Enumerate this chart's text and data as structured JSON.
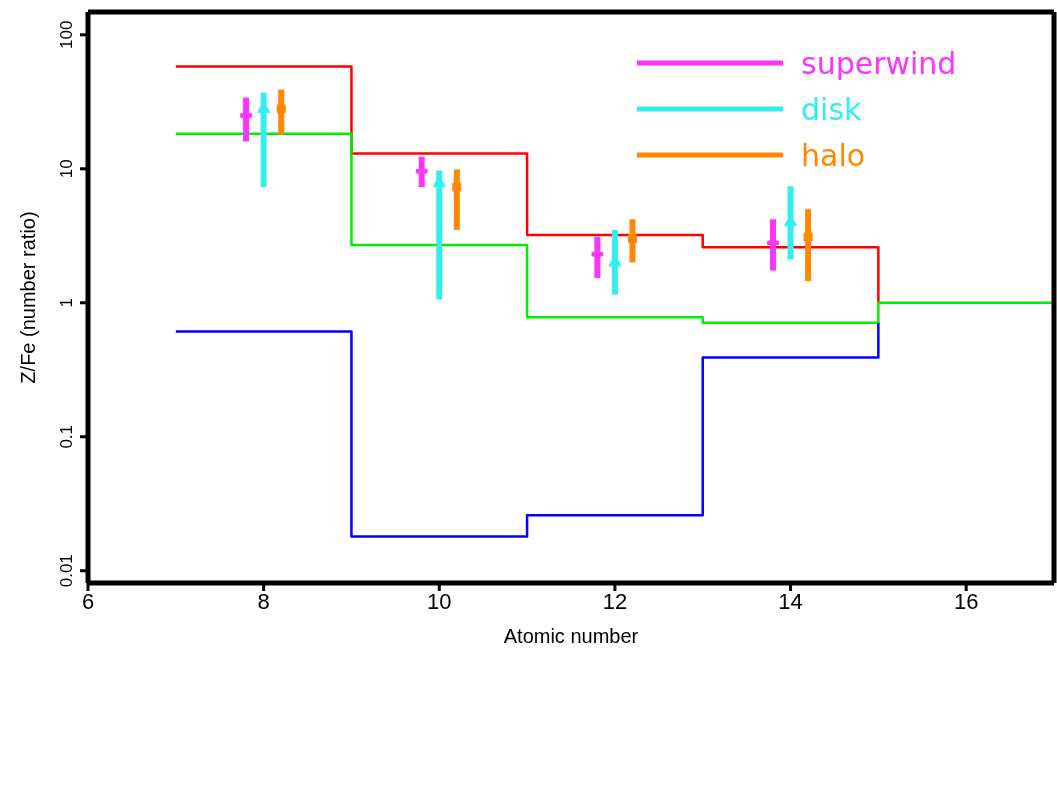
{
  "chart_data": {
    "type": "step",
    "xlabel": "Atomic number",
    "ylabel": "Z/Fe (number ratio)",
    "log": "y",
    "xlim": [
      6,
      17
    ],
    "xticks": [
      6,
      8,
      10,
      12,
      14,
      16
    ],
    "ylim": [
      0.0081,
      148
    ],
    "yticks": [
      0.01,
      0.1,
      1,
      10,
      100
    ],
    "grid": false,
    "legend": "top right",
    "series": [
      {
        "color": "#ff0000",
        "x": [
          7,
          9,
          11,
          13,
          15
        ],
        "values": [
          58,
          13,
          3.2,
          2.6,
          1
        ]
      },
      {
        "color": "#00ee00",
        "x": [
          7,
          9,
          11,
          13,
          15,
          17
        ],
        "values": [
          18.3,
          2.7,
          0.78,
          0.71,
          1,
          1
        ]
      },
      {
        "color": "#0000ff",
        "x": [
          7,
          9,
          11,
          13,
          15
        ],
        "values": [
          0.61,
          0.018,
          0.026,
          0.39,
          0.71
        ]
      },
      {
        "type": "scatter",
        "name": "superwind",
        "color": "#ff33ff",
        "marker": "cross",
        "x": [
          7.8,
          9.8,
          11.8,
          13.8
        ],
        "values": [
          25,
          9.6,
          2.3,
          2.8
        ],
        "errors": [
          [
            16,
            34
          ],
          [
            7.3,
            12.3
          ],
          [
            1.53,
            3.1
          ],
          [
            1.74,
            4.2
          ]
        ]
      },
      {
        "type": "scatter",
        "name": "disk",
        "color": "#33eeee",
        "marker": "triangle",
        "x": [
          8,
          10,
          12,
          14
        ],
        "values": [
          28,
          7.8,
          2.0,
          4.0
        ],
        "errors": [
          [
            7.3,
            37
          ],
          [
            1.06,
            9.7
          ],
          [
            1.15,
            3.5
          ],
          [
            2.1,
            7.4
          ]
        ]
      },
      {
        "type": "scatter",
        "name": "halo",
        "color": "#ff8800",
        "marker": "square",
        "x": [
          8.2,
          10.2,
          12.2,
          14.2
        ],
        "values": [
          28,
          7.3,
          3.0,
          3.1
        ],
        "errors": [
          [
            18,
            39
          ],
          [
            3.5,
            9.9
          ],
          [
            2.0,
            4.2
          ],
          [
            1.45,
            5.0
          ]
        ]
      }
    ]
  }
}
